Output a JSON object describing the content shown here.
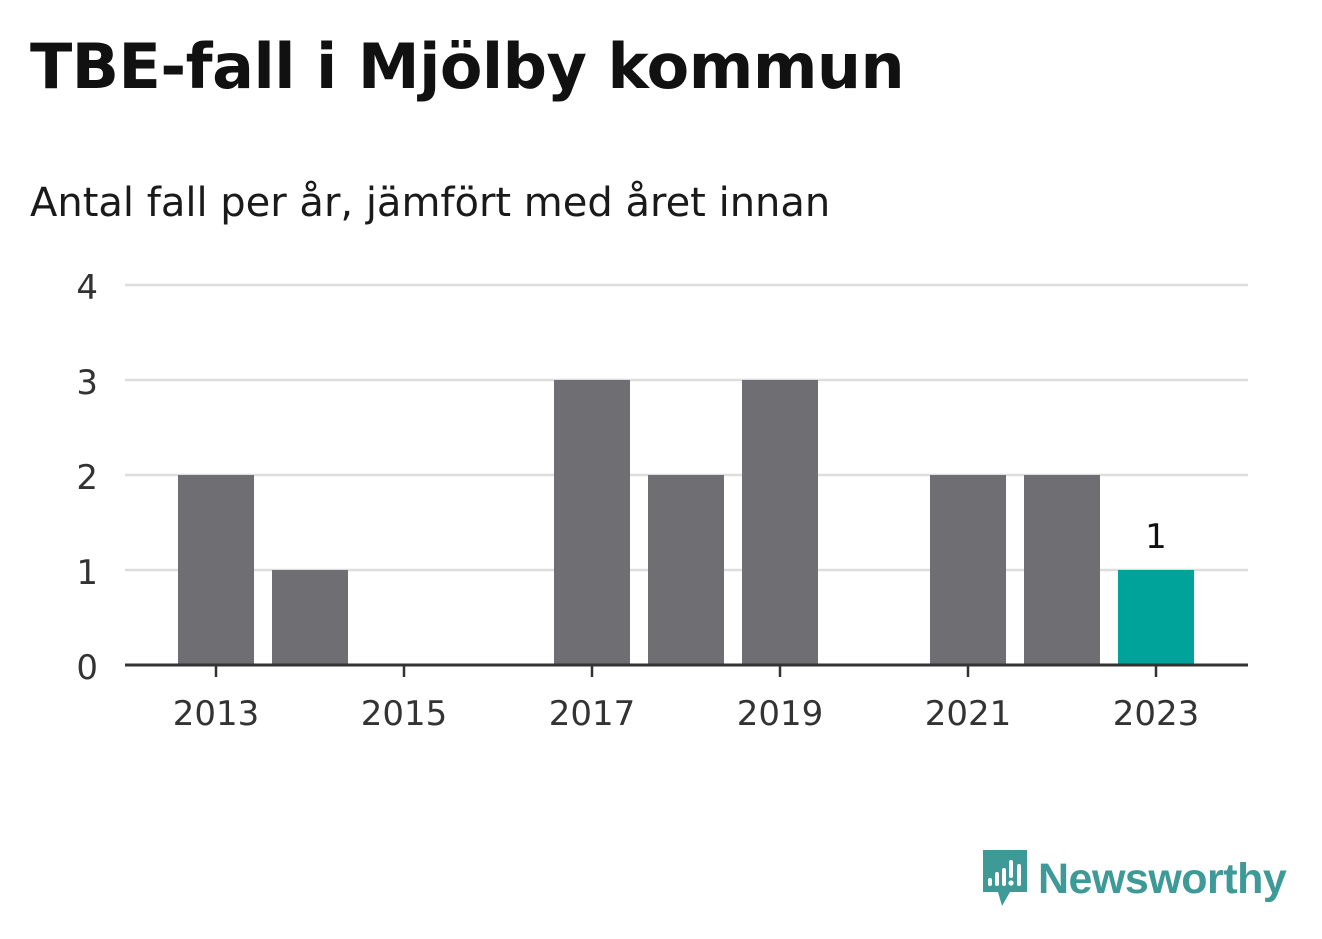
{
  "title": "TBE-fall i Mjölby kommun",
  "subtitle": "Antal fall per år, jämfört med året innan",
  "brand": {
    "name": "Newsworthy",
    "icon": "newsworthy-logo-icon",
    "color": "#3e9a97"
  },
  "colors": {
    "bar": "#6f6e73",
    "highlight": "#00a39a",
    "grid": "#dddddd",
    "axis": "#333333"
  },
  "chart_data": {
    "type": "bar",
    "categories": [
      "2013",
      "2014",
      "2015",
      "2016",
      "2017",
      "2018",
      "2019",
      "2020",
      "2021",
      "2022",
      "2023"
    ],
    "values": [
      2,
      1,
      0,
      0,
      3,
      2,
      3,
      0,
      2,
      2,
      1
    ],
    "x_tick_labels": [
      "2013",
      "2015",
      "2017",
      "2019",
      "2021",
      "2023"
    ],
    "y_ticks": [
      "0",
      "1",
      "2",
      "3",
      "4"
    ],
    "ylim": [
      0,
      4
    ],
    "highlight_category": "2023",
    "data_labels": [
      {
        "category": "2023",
        "text": "1"
      }
    ],
    "grid": true,
    "legend": "none"
  }
}
